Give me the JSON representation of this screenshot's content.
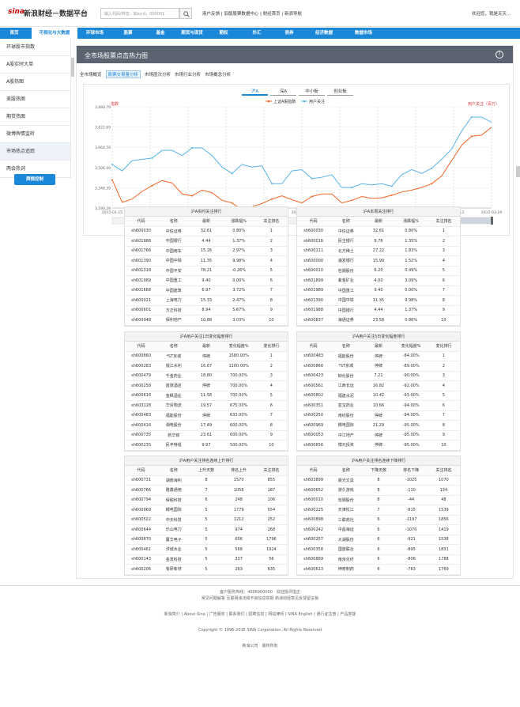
{
  "header": {
    "logo": "sina",
    "title": "新浪财经－数据平台",
    "search_placeholder": "输入代码/拼音，如scrd，000001",
    "links": "用户反馈 | 旧版股票数据中心 | 财经首页 | 新浪导航",
    "welcome": "欢迎您，我是天天..."
  },
  "nav": {
    "items": [
      "首页",
      "可视化与大数据",
      "环球市场",
      "股票",
      "基金",
      "期货与现货",
      "期权",
      "外汇",
      "债券",
      "经济数据",
      "数据市场"
    ]
  },
  "sidebar": {
    "items": [
      "环球股市指数",
      "A股实时大单",
      "A股热图",
      "美股热图",
      "期货热图",
      "微博舆情监听",
      "市场热点追踪",
      "两会热词"
    ],
    "button": "舆情控制"
  },
  "main": {
    "title": "全市场股票点击热力图",
    "help": "?",
    "subtabs": [
      "全市场概览",
      "股票交易量分析",
      "市场层次分析",
      "市场行业分析",
      "市场概念分析"
    ],
    "chart_tabs": [
      "沪A",
      "深A",
      "中小板",
      "创业板"
    ]
  },
  "chart_data": {
    "type": "line",
    "ylabel_left": "指数",
    "ylabel_right": "用户关注（百万）",
    "y_ticks": [
      "3,980.79",
      "3,822.69",
      "3,664.59",
      "3,506.49",
      "3,348.39",
      "3,190.29"
    ],
    "x_ticks": [
      "2015-01-15",
      "2015-01-21",
      "2015-01-27",
      "2015-02-02",
      "2015-02-06",
      "2015-02-12",
      "2015-02-25",
      "2015-03-03",
      "2015-03-09",
      "2015-03-13",
      "2015-03-19"
    ],
    "ylim": [
      3190.29,
      3980.79
    ],
    "series": [
      {
        "name": "上证A股指数",
        "color": "#f26522",
        "values": [
          3410,
          3235,
          3260,
          3320,
          3365,
          3405,
          3385,
          3300,
          3285,
          3330,
          3310,
          3250,
          3230,
          3175,
          3200,
          3225,
          3260,
          3285,
          3255,
          3230,
          3280,
          3300,
          3300,
          3230,
          3250,
          3280,
          3265,
          3270,
          3290,
          3315,
          3330,
          3350,
          3380,
          3440,
          3560,
          3680,
          3750,
          3760,
          3820
        ]
      },
      {
        "name": "用户关注",
        "color": "#56b4e9",
        "values": [
          3530,
          3480,
          3560,
          3570,
          3580,
          3640,
          3640,
          3600,
          3660,
          3660,
          3600,
          3510,
          3460,
          3530,
          3510,
          3520,
          3380,
          3380,
          3480,
          3490,
          3420,
          3430,
          3450,
          3350,
          3350,
          3380,
          3370,
          3380,
          3360,
          3450,
          3490,
          3460,
          3500,
          3570,
          3650,
          3790,
          3900,
          3900,
          3860
        ]
      }
    ]
  },
  "tables": [
    {
      "title": "沪A实时关注排行",
      "cols": [
        "代码",
        "名称",
        "最新",
        "涨跌幅%",
        "关注排名"
      ],
      "rows": [
        [
          "sh600030",
          "中信证券",
          "32.61",
          "0.80%",
          "1"
        ],
        [
          "sh601988",
          "中国银行",
          "4.44",
          "1.37%",
          "2"
        ],
        [
          "sh601766",
          "中国南车",
          "15.26",
          "2.97%",
          "3"
        ],
        [
          "sh601390",
          "中国中铁",
          "11.35",
          "9.98%",
          "4"
        ],
        [
          "sh601318",
          "中国平安",
          "78.21",
          "-0.26%",
          "5"
        ],
        [
          "sh601989",
          "中国重工",
          "9.40",
          "0.00%",
          "6"
        ],
        [
          "sh601668",
          "中国建筑",
          "6.97",
          "3.72%",
          "7"
        ],
        [
          "sh600021",
          "上海电力",
          "15.33",
          "2.47%",
          "8"
        ],
        [
          "sh600601",
          "方正科技",
          "8.94",
          "5.67%",
          "9"
        ],
        [
          "sh600048",
          "保利地产",
          "10.88",
          "3.03%",
          "10"
        ]
      ]
    },
    {
      "title": "沪A本周关注排行",
      "cols": [
        "代码",
        "名称",
        "最新",
        "涨跌幅%",
        "关注排名"
      ],
      "rows": [
        [
          "sh600030",
          "中信证券",
          "32.61",
          "0.80%",
          "1"
        ],
        [
          "sh600016",
          "民生银行",
          "9.76",
          "1.35%",
          "2"
        ],
        [
          "sh600111",
          "北方稀土",
          "27.22",
          "1.83%",
          "3"
        ],
        [
          "sh600000",
          "浦发银行",
          "15.99",
          "1.52%",
          "4"
        ],
        [
          "sh600010",
          "包钢股份",
          "6.20",
          "0.49%",
          "5"
        ],
        [
          "sh601899",
          "紫金矿业",
          "4.00",
          "3.09%",
          "6"
        ],
        [
          "sh601989",
          "中国重工",
          "9.40",
          "0.00%",
          "7"
        ],
        [
          "sh601390",
          "中国中铁",
          "11.35",
          "9.98%",
          "8"
        ],
        [
          "sh601988",
          "中国银行",
          "4.44",
          "1.37%",
          "9"
        ],
        [
          "sh600837",
          "海通证券",
          "23.58",
          "0.86%",
          "10"
        ]
      ]
    },
    {
      "title": "沪A用户关注1日变化幅度排行",
      "cols": [
        "代码",
        "名称",
        "最新",
        "变化幅度%",
        "变化排行"
      ],
      "rows": [
        [
          "sh600860",
          "*ST京城",
          "停牌",
          "1580.00%",
          "1"
        ],
        [
          "sh600283",
          "钱江水利",
          "16.67",
          "1100.00%",
          "2"
        ],
        [
          "sh600479",
          "千金药业",
          "18.80",
          "700.00%",
          "3"
        ],
        [
          "sh600258",
          "首旅酒店",
          "停牌",
          "700.00%",
          "4"
        ],
        [
          "sh600616",
          "金枫酒业",
          "11.58",
          "700.00%",
          "5"
        ],
        [
          "sh603128",
          "华贸物流",
          "19.57",
          "675.00%",
          "6"
        ],
        [
          "sh600483",
          "福能股份",
          "停牌",
          "633.00%",
          "7"
        ],
        [
          "sh600416",
          "湘电股份",
          "17.49",
          "600.00%",
          "8"
        ],
        [
          "sh600735",
          "新华锦",
          "23.61",
          "600.00%",
          "9"
        ],
        [
          "sh600235",
          "民丰特纸",
          "9.97",
          "500.00%",
          "10"
        ]
      ]
    },
    {
      "title": "沪A用户关注5日变化幅度排行",
      "cols": [
        "代码",
        "名称",
        "最新",
        "变化幅度%",
        "变化排行"
      ],
      "rows": [
        [
          "sh600483",
          "福能股份",
          "停牌",
          "-84.00%",
          "1"
        ],
        [
          "sh600860",
          "*ST京城",
          "停牌",
          "-89.00%",
          "2"
        ],
        [
          "sh600423",
          "柳化股份",
          "7.21",
          "-90.00%",
          "3"
        ],
        [
          "sh600561",
          "江西长运",
          "16.82",
          "-92.00%",
          "4"
        ],
        [
          "sh600802",
          "福建水泥",
          "10.42",
          "-93.00%",
          "5"
        ],
        [
          "sh600351",
          "亚宝药业",
          "10.66",
          "-94.00%",
          "6"
        ],
        [
          "sh600250",
          "南纺股份",
          "停牌",
          "-94.00%",
          "7"
        ],
        [
          "sh600969",
          "郴电国际",
          "21.29",
          "-95.00%",
          "8"
        ],
        [
          "sh600053",
          "中江地产",
          "停牌",
          "-95.00%",
          "9"
        ],
        [
          "sh600656",
          "博元投资",
          "停牌",
          "-95.00%",
          "10"
        ]
      ]
    },
    {
      "title": "沪A用户关注排名连续上升排行",
      "cols": [
        "代码",
        "名称",
        "上升天数",
        "排名上升",
        "关注排名"
      ],
      "rows": [
        [
          "sh600731",
          "湖南海利",
          "8",
          "1570",
          "855"
        ],
        [
          "sh600766",
          "隆鑫通用",
          "7",
          "1056",
          "187"
        ],
        [
          "sh600794",
          "保税科技",
          "6",
          "248",
          "106"
        ],
        [
          "sh600969",
          "郴电国际",
          "5",
          "1779",
          "554"
        ],
        [
          "sh600522",
          "中天科技",
          "5",
          "1212",
          "252"
        ],
        [
          "sh600644",
          "乐山电力",
          "5",
          "974",
          "268"
        ],
        [
          "sh600870",
          "厦华电子",
          "5",
          "656",
          "1796"
        ],
        [
          "sh600461",
          "洪城水业",
          "5",
          "568",
          "1924"
        ],
        [
          "sh600143",
          "金发科技",
          "5",
          "337",
          "56"
        ],
        [
          "sh600206",
          "有研新材",
          "5",
          "263",
          "635"
        ]
      ]
    },
    {
      "title": "沪A用户关注排名连续下降排行",
      "cols": [
        "代码",
        "名称",
        "下降天数",
        "排名下降",
        "关注排名"
      ],
      "rows": [
        [
          "sh603899",
          "晨光文具",
          "8",
          "-1025",
          "1070"
        ],
        [
          "sh600652",
          "游久游戏",
          "8",
          "-110",
          "134"
        ],
        [
          "sh600010",
          "包钢股份",
          "8",
          "-44",
          "48"
        ],
        [
          "sh600225",
          "天津松江",
          "7",
          "-815",
          "1539"
        ],
        [
          "sh600898",
          "三联商社",
          "6",
          "-1197",
          "1856"
        ],
        [
          "sh600242",
          "中昌海运",
          "6",
          "-1070",
          "1419"
        ],
        [
          "sh600257",
          "大湖股份",
          "6",
          "-921",
          "1538"
        ],
        [
          "sh600358",
          "国旅联合",
          "6",
          "-895",
          "1831"
        ],
        [
          "sh600889",
          "南京化纤",
          "6",
          "-806",
          "1788"
        ],
        [
          "sh600613",
          "神奇制药",
          "6",
          "-763",
          "1769"
        ]
      ]
    }
  ],
  "footer": {
    "line1": "客户服务热线：4006900000　欢迎批评指正",
    "line2": "常见问题解答 互联网违法和不良信息举报 新浪财经意见反馈留言板",
    "line3": "新浪简介 | About Sina | 广告服务 | 联系我们 | 招聘信息 | 网站律师 | SINA English | 通行证注册 | 产品答疑",
    "line4": "Copyright © 1996-2015 SINA Corporation, All Rights Reserved",
    "line5": "新浪公司　版权所有"
  }
}
